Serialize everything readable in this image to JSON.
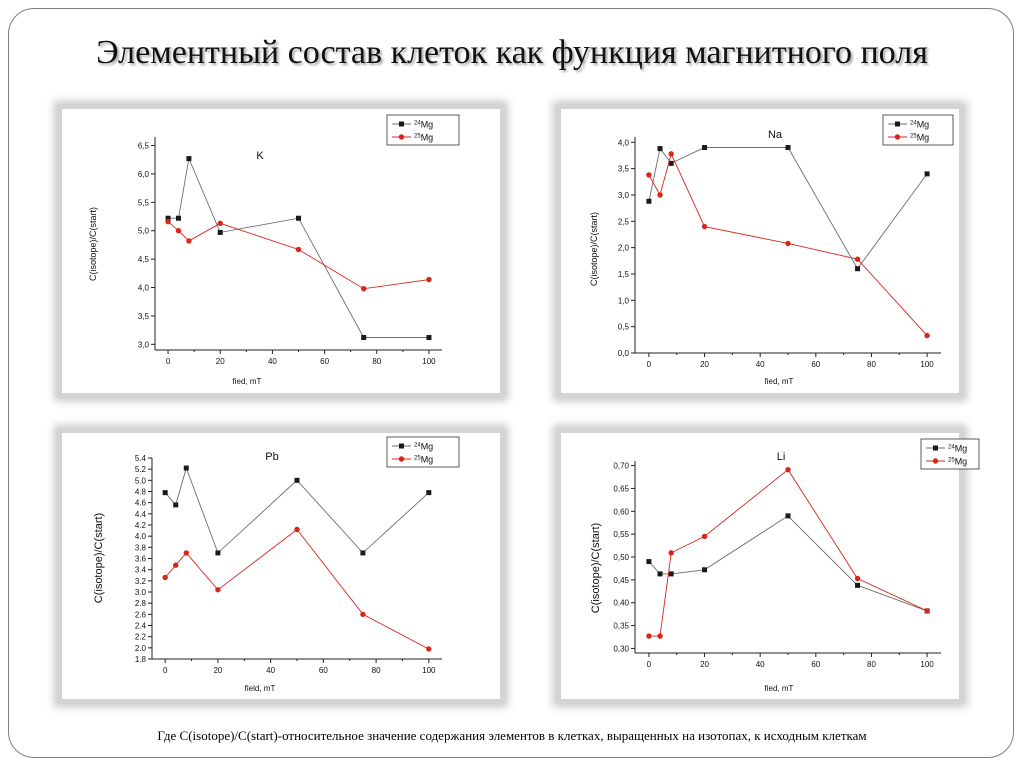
{
  "slide": {
    "title": "Элементный состав клеток как функция магнитного поля",
    "footnote": "Где C(isotope)/C(start)-относительное значение содержания элементов в клетках, выращенных на изотопах,  к исходным клеткам"
  },
  "colors": {
    "mg24": "#1a1a1a",
    "mg25": "#d9261c",
    "line24": "#6e6e6e",
    "line25": "#d9261c"
  },
  "legend": {
    "series": [
      {
        "iso": "24",
        "el": "Mg"
      },
      {
        "iso": "25",
        "el": "Mg"
      }
    ]
  },
  "chart_data": [
    {
      "type": "line",
      "title": "K",
      "xlabel": "fied, mT",
      "ylabel": "C(isotope)/C(start)",
      "xlim": [
        -5,
        105
      ],
      "ylim": [
        2.9,
        6.65
      ],
      "xticks": [
        0,
        20,
        40,
        60,
        80,
        100
      ],
      "yticks": [
        3.0,
        3.5,
        4.0,
        4.5,
        5.0,
        5.5,
        6.0,
        6.5
      ],
      "ytick_labels": [
        "3,0",
        "3,5",
        "4,0",
        "4,5",
        "5,0",
        "5,5",
        "6,0",
        "6,5"
      ],
      "series": [
        {
          "name": "24Mg",
          "x": [
            0,
            4,
            8,
            20,
            50,
            75,
            100
          ],
          "y": [
            5.22,
            5.22,
            6.27,
            4.97,
            5.22,
            3.12,
            3.12
          ]
        },
        {
          "name": "25Mg",
          "x": [
            0,
            4,
            8,
            20,
            50,
            75,
            100
          ],
          "y": [
            5.16,
            5.0,
            4.82,
            5.13,
            4.67,
            3.98,
            4.14
          ]
        }
      ]
    },
    {
      "type": "line",
      "title": "Na",
      "xlabel": "fied, mT",
      "ylabel": "C(isotope)/C(start)",
      "xlim": [
        -5,
        105
      ],
      "ylim": [
        0,
        4.1
      ],
      "xticks": [
        0,
        20,
        40,
        60,
        80,
        100
      ],
      "yticks": [
        0.0,
        0.5,
        1.0,
        1.5,
        2.0,
        2.5,
        3.0,
        3.5,
        4.0
      ],
      "ytick_labels": [
        "0,0",
        "0,5",
        "1,0",
        "1,5",
        "2,0",
        "2,5",
        "3,0",
        "3,5",
        "4,0"
      ],
      "series": [
        {
          "name": "24Mg",
          "x": [
            0,
            4,
            8,
            20,
            50,
            75,
            100
          ],
          "y": [
            2.88,
            3.88,
            3.6,
            3.9,
            3.9,
            1.6,
            3.4
          ]
        },
        {
          "name": "25Mg",
          "x": [
            0,
            4,
            8,
            20,
            50,
            75,
            100
          ],
          "y": [
            3.38,
            3.0,
            3.78,
            2.4,
            2.08,
            1.78,
            0.33
          ]
        }
      ]
    },
    {
      "type": "line",
      "title": "Pb",
      "xlabel": "field, mT",
      "ylabel": "C(isotope)/C(start)",
      "xlim": [
        -5,
        105
      ],
      "ylim": [
        1.8,
        5.4
      ],
      "xticks": [
        0,
        20,
        40,
        60,
        80,
        100
      ],
      "yticks": [
        1.8,
        2.0,
        2.2,
        2.4,
        2.6,
        2.8,
        3.0,
        3.2,
        3.4,
        3.6,
        3.8,
        4.0,
        4.2,
        4.4,
        4.6,
        4.8,
        5.0,
        5.2,
        5.4
      ],
      "ytick_labels": [
        "1.8",
        "2.0",
        "2.2",
        "2.4",
        "2.6",
        "2.8",
        "3.0",
        "3.2",
        "3.4",
        "3.6",
        "3.8",
        "4.0",
        "4.2",
        "4.4",
        "4.6",
        "4.8",
        "5.0",
        "5.2",
        "5.4"
      ],
      "series": [
        {
          "name": "24Mg",
          "x": [
            0,
            4,
            8,
            20,
            50,
            75,
            100
          ],
          "y": [
            4.78,
            4.56,
            5.22,
            3.7,
            5.0,
            3.7,
            4.78
          ]
        },
        {
          "name": "25Mg",
          "x": [
            0,
            4,
            8,
            20,
            50,
            75,
            100
          ],
          "y": [
            3.26,
            3.48,
            3.7,
            3.04,
            4.12,
            2.6,
            1.98
          ]
        }
      ]
    },
    {
      "type": "line",
      "title": "Li",
      "xlabel": "fied, mT",
      "ylabel": "C(isotope)/C(start)",
      "xlim": [
        -5,
        105
      ],
      "ylim": [
        0.29,
        0.71
      ],
      "xticks": [
        0,
        20,
        40,
        60,
        80,
        100
      ],
      "yticks": [
        0.3,
        0.35,
        0.4,
        0.45,
        0.5,
        0.55,
        0.6,
        0.65,
        0.7
      ],
      "ytick_labels": [
        "0,30",
        "0,35",
        "0,40",
        "0,45",
        "0,50",
        "0,55",
        "0,60",
        "0,65",
        "0,70"
      ],
      "series": [
        {
          "name": "24Mg",
          "x": [
            0,
            4,
            8,
            20,
            50,
            75,
            100
          ],
          "y": [
            0.49,
            0.463,
            0.463,
            0.472,
            0.59,
            0.438,
            0.382
          ]
        },
        {
          "name": "25Mg",
          "x": [
            0,
            4,
            8,
            20,
            50,
            75,
            100
          ],
          "y": [
            0.327,
            0.327,
            0.509,
            0.545,
            0.691,
            0.453,
            0.382
          ]
        }
      ]
    }
  ]
}
